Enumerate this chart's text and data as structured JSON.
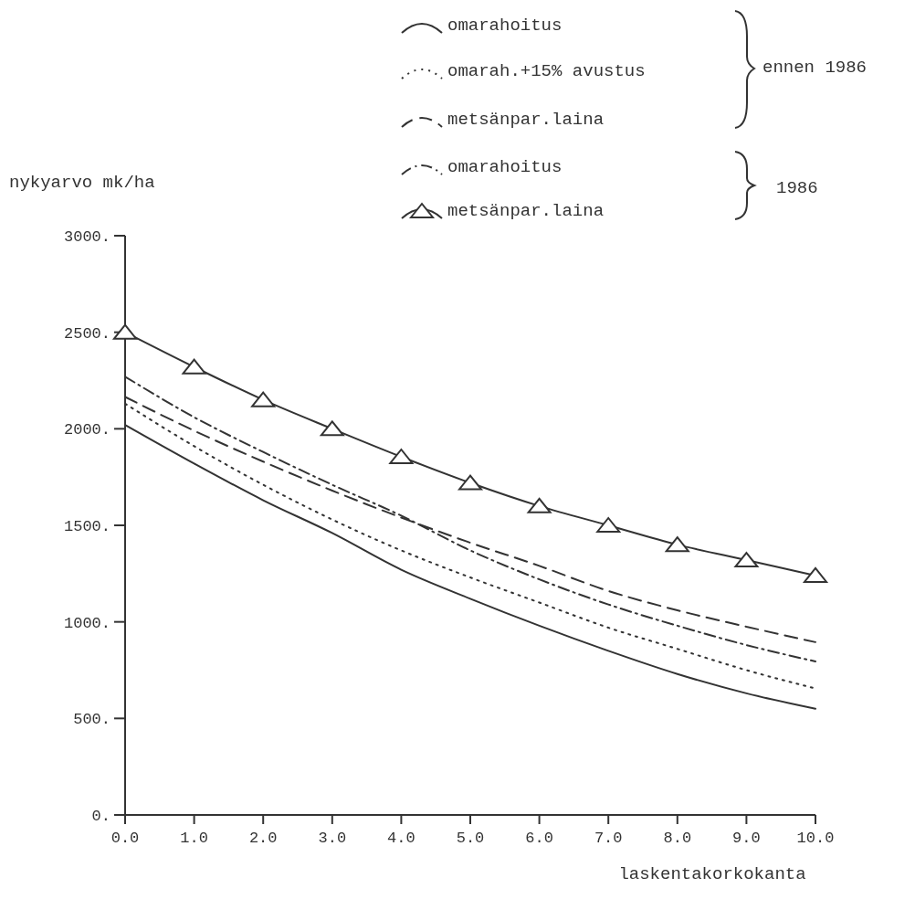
{
  "chart_data": {
    "type": "line",
    "ylabel": "nykyarvo mk/ha",
    "xlabel": "laskentakorkokanta",
    "x": [
      0,
      1,
      2,
      3,
      4,
      5,
      6,
      7,
      8,
      9,
      10
    ],
    "xlim": [
      0,
      10
    ],
    "xticks": [
      {
        "value": 0,
        "label": "0.0"
      },
      {
        "value": 1,
        "label": "1.0"
      },
      {
        "value": 2,
        "label": "2.0"
      },
      {
        "value": 3,
        "label": "3.0"
      },
      {
        "value": 4,
        "label": "4.0"
      },
      {
        "value": 5,
        "label": "5.0"
      },
      {
        "value": 6,
        "label": "6.0"
      },
      {
        "value": 7,
        "label": "7.0"
      },
      {
        "value": 8,
        "label": "8.0"
      },
      {
        "value": 9,
        "label": "9.0"
      },
      {
        "value": 10,
        "label": "10.0"
      }
    ],
    "ylim": [
      0,
      3000
    ],
    "yticks": [
      {
        "value": 0,
        "label": "0."
      },
      {
        "value": 500,
        "label": "500."
      },
      {
        "value": 1000,
        "label": "1000."
      },
      {
        "value": 1500,
        "label": "1500."
      },
      {
        "value": 2000,
        "label": "2000."
      },
      {
        "value": 2500,
        "label": "2500."
      },
      {
        "value": 3000,
        "label": "3000."
      }
    ],
    "grid": false,
    "legend": "top right",
    "series": [
      {
        "name": "omarahoitus",
        "color": "#333333",
        "line_style": "solid",
        "marker": "none",
        "values": [
          2020,
          1820,
          1630,
          1460,
          1270,
          1120,
          980,
          850,
          730,
          630,
          550
        ]
      },
      {
        "name": "omarah.+15% avustus",
        "color": "#333333",
        "line_style": "dotted",
        "marker": "none",
        "values": [
          2130,
          1910,
          1710,
          1530,
          1370,
          1230,
          1100,
          970,
          860,
          750,
          655
        ]
      },
      {
        "name": "metsänpar.laina",
        "color": "#333333",
        "line_style": "dashed",
        "marker": "none",
        "values": [
          2165,
          1990,
          1830,
          1680,
          1540,
          1410,
          1290,
          1160,
          1060,
          975,
          895
        ]
      },
      {
        "name": "omarahoitus",
        "color": "#333333",
        "line_style": "dashdot",
        "marker": "none",
        "values": [
          2270,
          2060,
          1880,
          1710,
          1550,
          1370,
          1220,
          1090,
          980,
          880,
          795
        ]
      },
      {
        "name": "metsänpar.laina",
        "color": "#333333",
        "line_style": "solid",
        "marker": "triangle",
        "values": [
          2500,
          2320,
          2150,
          2000,
          1855,
          1720,
          1600,
          1500,
          1400,
          1320,
          1240
        ]
      }
    ],
    "annotations": [
      "ennen 1986",
      "1986"
    ]
  }
}
